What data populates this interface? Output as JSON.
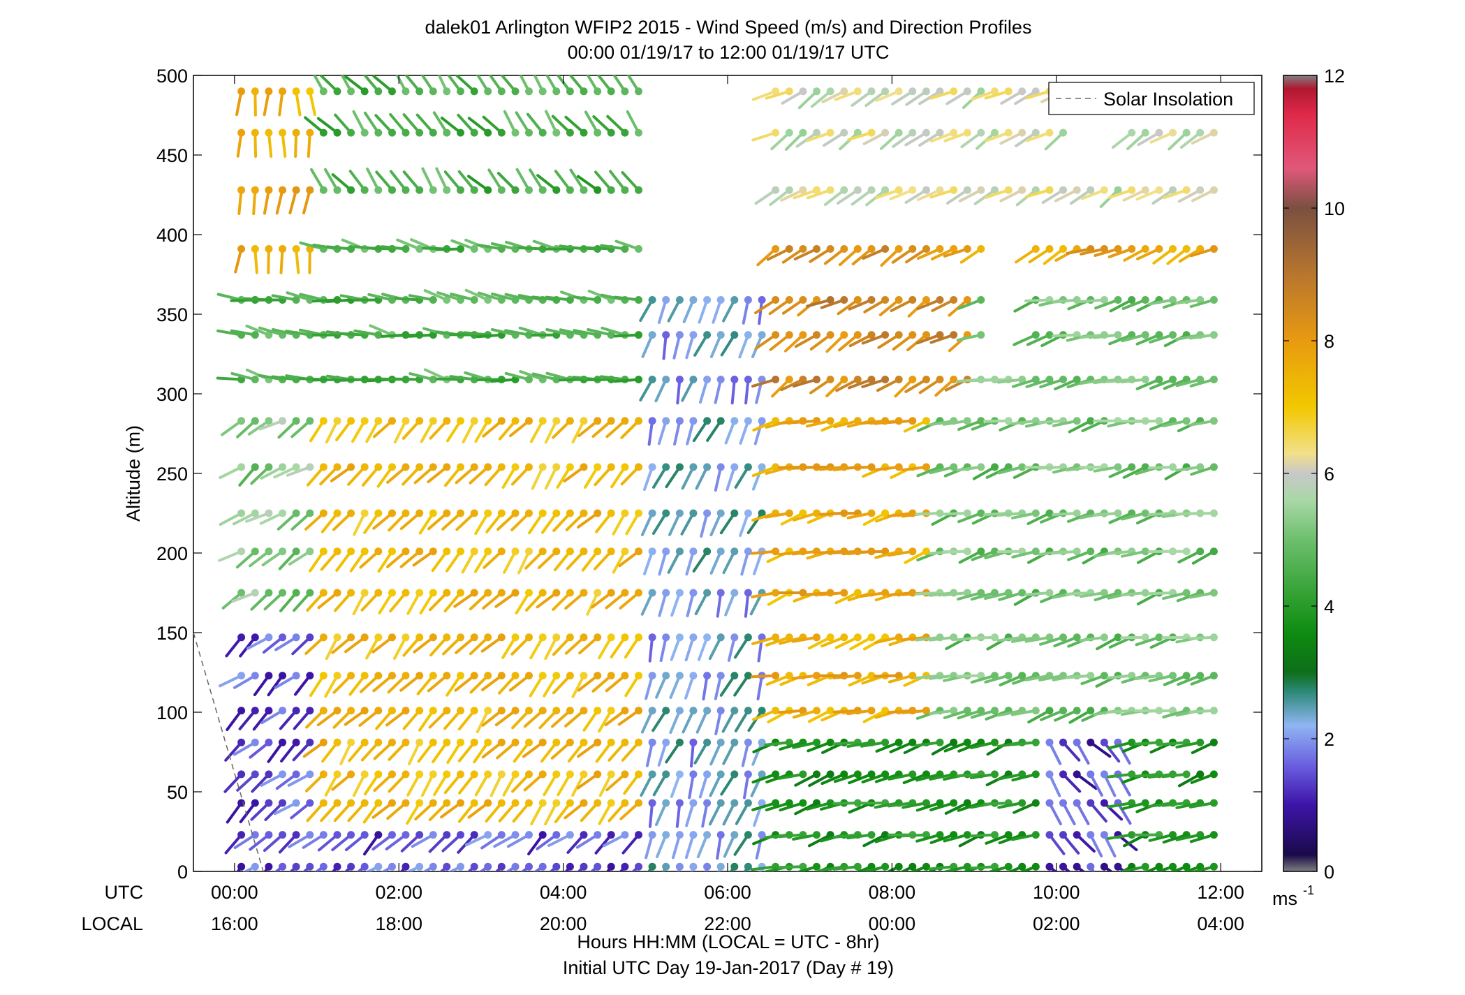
{
  "chart_data": {
    "type": "wind-barb-profile",
    "title": "dalek01 Arlington WFIP2 2015 - Wind Speed (m/s) and Direction Profiles",
    "subtitle": "00:00 01/19/17 to 12:00 01/19/17  UTC",
    "ylabel": "Altitude (m)",
    "xlabel": "Hours HH:MM  (LOCAL = UTC - 8hr)",
    "xlabel2": "Initial UTC Day 19-Jan-2017 (Day # 19)",
    "row_utc_label": "UTC",
    "row_local_label": "LOCAL",
    "x_ticks_utc": [
      "00:00",
      "02:00",
      "04:00",
      "06:00",
      "08:00",
      "10:00",
      "12:00"
    ],
    "x_ticks_local": [
      "16:00",
      "18:00",
      "20:00",
      "22:00",
      "00:00",
      "02:00",
      "04:00"
    ],
    "x_hours": [
      0,
      2,
      4,
      6,
      8,
      10,
      12
    ],
    "xlim": [
      -0.5,
      12.5
    ],
    "ylim": [
      0,
      500
    ],
    "y_ticks": [
      0,
      50,
      100,
      150,
      200,
      250,
      300,
      350,
      400,
      450,
      500
    ],
    "legend": {
      "label": "Solar Insolation",
      "position": "top-right"
    },
    "solar_insolation_line": {
      "x": [
        -0.5,
        0.35
      ],
      "y": [
        150,
        0
      ]
    },
    "colorbar": {
      "ticks": [
        0,
        2,
        4,
        6,
        8,
        10,
        12
      ],
      "unit_label": "ms",
      "unit_exponent": "-1",
      "stops": [
        [
          0,
          "#7f7f7f"
        ],
        [
          0.25,
          "#1a0a4a"
        ],
        [
          1.0,
          "#3d14a8"
        ],
        [
          1.6,
          "#6a5fe0"
        ],
        [
          2.2,
          "#8fb5f2"
        ],
        [
          2.7,
          "#2e8a7a"
        ],
        [
          3.0,
          "#0e6e1a"
        ],
        [
          3.6,
          "#0e8c10"
        ],
        [
          4.3,
          "#3ca63c"
        ],
        [
          5.0,
          "#6dbf6d"
        ],
        [
          5.6,
          "#a9d8a7"
        ],
        [
          6.0,
          "#c8c8c8"
        ],
        [
          6.3,
          "#f2e08a"
        ],
        [
          7.0,
          "#f2c800"
        ],
        [
          8.0,
          "#e89a10"
        ],
        [
          9.0,
          "#b8762e"
        ],
        [
          10.0,
          "#7a5040"
        ],
        [
          10.6,
          "#e0587a"
        ],
        [
          11.4,
          "#e02a4a"
        ],
        [
          11.8,
          "#b01830"
        ],
        [
          12.0,
          "#808080"
        ]
      ]
    },
    "levels_m": [
      3,
      23,
      43,
      61,
      81,
      101,
      123,
      147,
      175,
      201,
      225,
      254,
      283,
      309,
      337,
      359,
      391,
      428,
      464,
      490
    ],
    "barb_times_hours": [
      0.083,
      0.25,
      0.417,
      0.583,
      0.75,
      0.917,
      1.083,
      1.25,
      1.417,
      1.583,
      1.75,
      1.917,
      2.083,
      2.25,
      2.417,
      2.583,
      2.75,
      2.917,
      3.083,
      3.25,
      3.417,
      3.583,
      3.75,
      3.917,
      4.083,
      4.25,
      4.417,
      4.583,
      4.75,
      4.917,
      5.083,
      5.25,
      5.417,
      5.583,
      5.75,
      5.917,
      6.083,
      6.25,
      6.417,
      6.583,
      6.75,
      6.917,
      7.083,
      7.25,
      7.417,
      7.583,
      7.75,
      7.917,
      8.083,
      8.25,
      8.417,
      8.583,
      8.75,
      8.917,
      9.083,
      9.25,
      9.417,
      9.583,
      9.75,
      9.917,
      10.083,
      10.25,
      10.417,
      10.583,
      10.75,
      10.917,
      11.083,
      11.25,
      11.417,
      11.583,
      11.75,
      11.917
    ],
    "approx_profiles": [
      {
        "hours": [
          0.0,
          5.0
        ],
        "altitude_m": [
          0,
          150
        ],
        "speed_ms": 1.5,
        "dir_deg": 230
      },
      {
        "hours": [
          0.0,
          5.0
        ],
        "altitude_m": [
          150,
          300
        ],
        "speed_ms": 5.2,
        "dir_deg": 235
      },
      {
        "hours": [
          1.0,
          5.0
        ],
        "altitude_m": [
          40,
          300
        ],
        "speed_ms": 7.3,
        "dir_deg": 220
      },
      {
        "hours": [
          0.0,
          5.0
        ],
        "altitude_m": [
          300,
          400
        ],
        "speed_ms": 4.6,
        "dir_deg": 280
      },
      {
        "hours": [
          0.0,
          1.0
        ],
        "altitude_m": [
          390,
          500
        ],
        "speed_ms": 7.5,
        "dir_deg": 180
      },
      {
        "hours": [
          1.0,
          5.0
        ],
        "altitude_m": [
          400,
          500
        ],
        "speed_ms": 4.5,
        "dir_deg": 320
      },
      {
        "hours": [
          5.0,
          6.6
        ],
        "altitude_m": [
          0,
          360
        ],
        "speed_ms": 2.2,
        "dir_deg": 200
      },
      {
        "hours": [
          6.5,
          12.0
        ],
        "altitude_m": [
          0,
          100
        ],
        "speed_ms": 3.8,
        "dir_deg": 255
      },
      {
        "hours": [
          9.9,
          10.9
        ],
        "altitude_m": [
          0,
          90
        ],
        "speed_ms": 1.3,
        "dir_deg": 140
      },
      {
        "hours": [
          6.5,
          12.0
        ],
        "altitude_m": [
          100,
          360
        ],
        "speed_ms": 5.0,
        "dir_deg": 255
      },
      {
        "hours": [
          6.5,
          8.5
        ],
        "altitude_m": [
          100,
          360
        ],
        "speed_ms": 7.6,
        "dir_deg": 255
      },
      {
        "hours": [
          6.5,
          9.0
        ],
        "altitude_m": [
          300,
          500
        ],
        "speed_ms": 8.5,
        "dir_deg": 240
      },
      {
        "hours": [
          8.5,
          12.0
        ],
        "altitude_m": [
          380,
          500
        ],
        "speed_ms": 7.8,
        "dir_deg": 245
      },
      {
        "hours": [
          6.5,
          12.0
        ],
        "altitude_m": [
          400,
          500
        ],
        "speed_ms": 6.0,
        "dir_deg": 240
      }
    ],
    "missing_regions": [
      {
        "hours": [
          5.25,
          6.25
        ],
        "altitude_m": [
          370,
          500
        ]
      },
      {
        "hours": [
          9.1,
          9.6
        ],
        "altitude_m": [
          330,
          420
        ]
      },
      {
        "hours": [
          10.1,
          10.9
        ],
        "altitude_m": [
          440,
          500
        ]
      }
    ]
  }
}
